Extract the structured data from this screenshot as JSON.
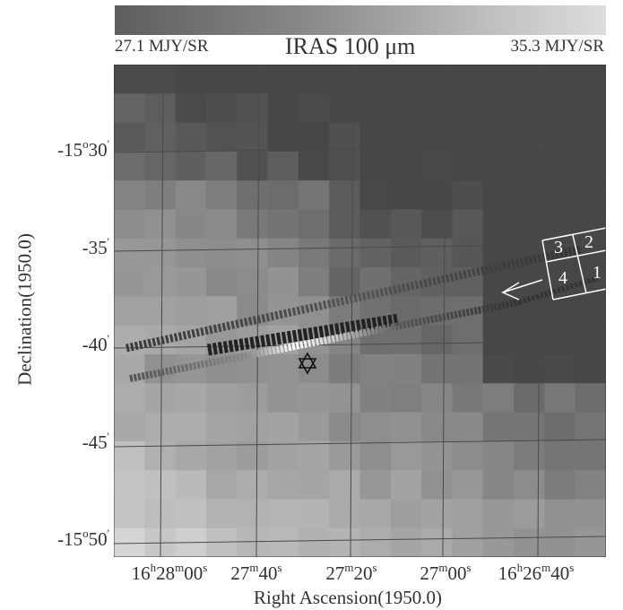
{
  "colorbar": {
    "min_label": "27.1 MJY/SR",
    "max_label": "35.3 MJY/SR",
    "title": "IRAS 100 μm"
  },
  "axes": {
    "xlabel": "Right Ascension(1950.0)",
    "ylabel": "Declination(1950.0)",
    "yticks": [
      {
        "deg": "-15",
        "degsup": "o",
        "min": "30",
        "minsup": "'"
      },
      {
        "deg": "",
        "degsup": "",
        "min": "-35",
        "minsup": "'"
      },
      {
        "deg": "",
        "degsup": "",
        "min": "-40",
        "minsup": "'"
      },
      {
        "deg": "",
        "degsup": "",
        "min": "-45",
        "minsup": "'"
      },
      {
        "deg": "-15",
        "degsup": "o",
        "min": "50",
        "minsup": "'"
      }
    ],
    "xticks": [
      {
        "h": "16",
        "hs": "h",
        "m": "28",
        "ms": "m",
        "s": "00",
        "ss": "s"
      },
      {
        "h": "",
        "hs": "",
        "m": "27",
        "ms": "m",
        "s": "40",
        "ss": "s"
      },
      {
        "h": "",
        "hs": "",
        "m": "27",
        "ms": "m",
        "s": "20",
        "ss": "s"
      },
      {
        "h": "",
        "hs": "",
        "m": "27",
        "ms": "m",
        "s": "00",
        "ss": "s"
      },
      {
        "h": "16",
        "hs": "h",
        "m": "26",
        "ms": "m",
        "s": "40",
        "ss": "s"
      }
    ]
  },
  "fields": [
    "1",
    "2",
    "3",
    "4"
  ],
  "colors": {
    "grid": "#4a4a4a",
    "field_box": "#ffffff",
    "marker": "#111111"
  }
}
